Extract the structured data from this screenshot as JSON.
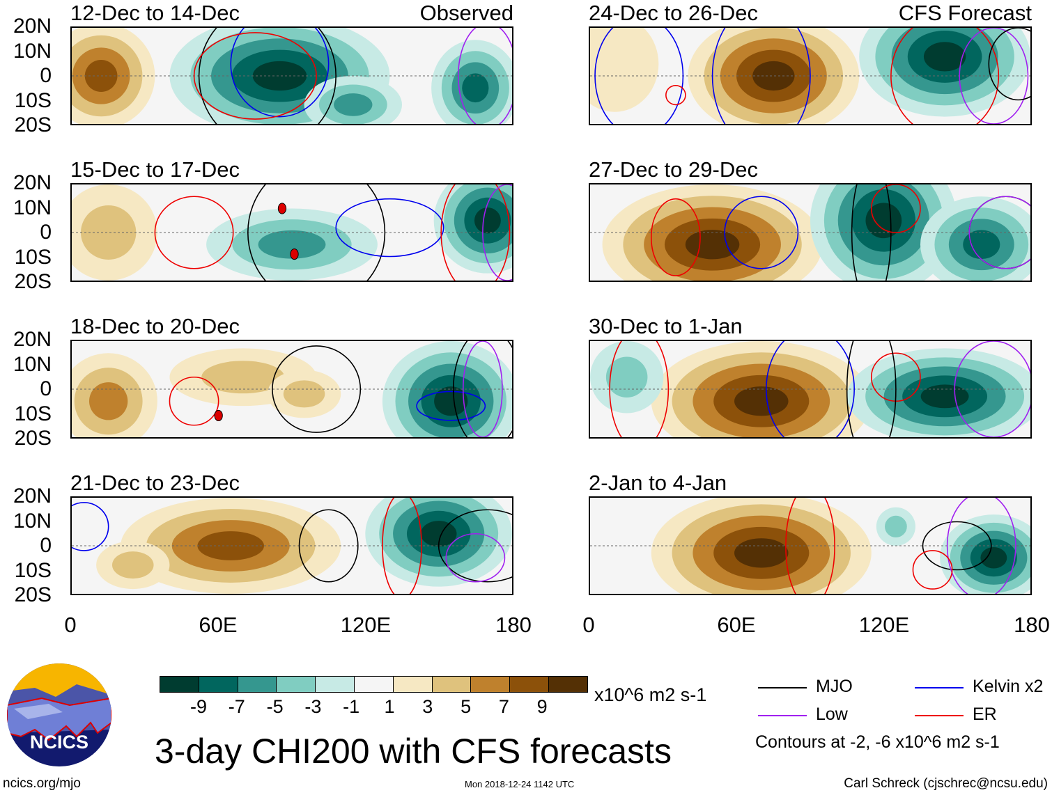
{
  "header": {
    "observed_label": "Observed",
    "forecast_label": "CFS Forecast"
  },
  "lat_labels": [
    "20N",
    "10N",
    "0",
    "10S",
    "20S"
  ],
  "lon_labels": [
    "0",
    "60E",
    "120E",
    "180"
  ],
  "colorbar": {
    "colors": [
      "#003c30",
      "#01665e",
      "#35978f",
      "#80cdc1",
      "#c7eae5",
      "#f5f5f5",
      "#f6e8c3",
      "#dfc27d",
      "#bf812d",
      "#8c510a",
      "#543005"
    ],
    "labels": [
      "-9",
      "-7",
      "-5",
      "-3",
      "-1",
      "1",
      "3",
      "5",
      "7",
      "9"
    ],
    "units": "x10^6 m2 s-1"
  },
  "title": "3-day CHI200 with CFS forecasts",
  "legend": {
    "items": [
      {
        "label": "MJO",
        "color": "#000000"
      },
      {
        "label": "Kelvin x2",
        "color": "#0000ee"
      },
      {
        "label": "Low",
        "color": "#a020f0"
      },
      {
        "label": "ER",
        "color": "#ee0000"
      }
    ],
    "note": "Contours at -2, -6 x10^6 m2 s-1"
  },
  "footer": {
    "url": "ncics.org/mjo",
    "timestamp": "Mon 2018-12-24 1142 UTC",
    "author": "Carl Schreck (cjschrec@ncsu.edu)"
  },
  "logo": {
    "text": "NCICS"
  },
  "panels": [
    {
      "title": "12-Dec to 14-Dec",
      "blobs": [
        [
          12,
          0,
          22,
          22,
          8
        ],
        [
          85,
          0,
          45,
          25,
          -10
        ],
        [
          165,
          -5,
          18,
          20,
          -6
        ],
        [
          115,
          -12,
          20,
          12,
          -5
        ]
      ],
      "contours": [
        [
          "MJO",
          80,
          0,
          28,
          30
        ],
        [
          "Kelvin",
          85,
          5,
          20,
          22
        ],
        [
          "ER",
          75,
          0,
          25,
          18
        ],
        [
          "Low",
          170,
          0,
          12,
          22
        ]
      ],
      "storms": []
    },
    {
      "title": "15-Dec to 17-Dec",
      "blobs": [
        [
          15,
          0,
          20,
          20,
          4
        ],
        [
          90,
          -5,
          35,
          15,
          -4
        ],
        [
          170,
          5,
          22,
          22,
          -10
        ]
      ],
      "contours": [
        [
          "ER",
          50,
          0,
          16,
          15
        ],
        [
          "MJO",
          100,
          0,
          28,
          30
        ],
        [
          "Kelvin",
          130,
          2,
          22,
          12
        ],
        [
          "ER",
          165,
          0,
          14,
          25
        ],
        [
          "Low",
          178,
          0,
          10,
          20
        ]
      ],
      "storms": [
        [
          86,
          10
        ],
        [
          91,
          -9
        ]
      ]
    },
    {
      "title": "18-Dec to 20-Dec",
      "blobs": [
        [
          15,
          -5,
          20,
          20,
          6
        ],
        [
          70,
          5,
          30,
          12,
          5
        ],
        [
          95,
          -2,
          15,
          10,
          4
        ],
        [
          155,
          -5,
          28,
          25,
          -8
        ]
      ],
      "contours": [
        [
          "ER",
          50,
          -5,
          10,
          10
        ],
        [
          "MJO",
          100,
          0,
          18,
          18
        ],
        [
          "Kelvin",
          155,
          -7,
          14,
          6
        ],
        [
          "MJO",
          170,
          0,
          14,
          25
        ],
        [
          "Low",
          168,
          0,
          8,
          20
        ]
      ],
      "storms": [
        [
          60,
          -11
        ]
      ]
    },
    {
      "title": "21-Dec to 23-Dec",
      "blobs": [
        [
          65,
          0,
          45,
          20,
          9
        ],
        [
          25,
          -8,
          15,
          10,
          4
        ],
        [
          150,
          5,
          30,
          22,
          -10
        ]
      ],
      "contours": [
        [
          "Kelvin",
          5,
          8,
          10,
          10
        ],
        [
          "MJO",
          105,
          0,
          12,
          15
        ],
        [
          "ER",
          135,
          0,
          8,
          22
        ],
        [
          "MJO",
          170,
          0,
          20,
          15
        ],
        [
          "Low",
          165,
          -5,
          12,
          10
        ]
      ],
      "storms": []
    },
    {
      "title": "24-Dec to 26-Dec",
      "blobs": [
        [
          10,
          5,
          18,
          20,
          3
        ],
        [
          75,
          0,
          35,
          25,
          10
        ],
        [
          145,
          8,
          35,
          25,
          -10
        ]
      ],
      "contours": [
        [
          "Kelvin",
          20,
          0,
          18,
          25
        ],
        [
          "ER",
          35,
          -8,
          4,
          4
        ],
        [
          "Kelvin",
          70,
          0,
          20,
          30
        ],
        [
          "ER",
          145,
          0,
          22,
          25
        ],
        [
          "Low",
          165,
          0,
          14,
          20
        ],
        [
          "MJO",
          175,
          5,
          12,
          15
        ]
      ],
      "storms": []
    },
    {
      "title": "27-Dec to 29-Dec",
      "blobs": [
        [
          50,
          -5,
          45,
          25,
          10
        ],
        [
          120,
          5,
          30,
          30,
          -10
        ],
        [
          160,
          -5,
          25,
          20,
          -6
        ]
      ],
      "contours": [
        [
          "ER",
          35,
          -2,
          10,
          16
        ],
        [
          "Kelvin",
          70,
          0,
          15,
          15
        ],
        [
          "MJO",
          115,
          0,
          8,
          30
        ],
        [
          "ER",
          125,
          10,
          10,
          10
        ],
        [
          "MJO",
          170,
          0,
          15,
          15
        ],
        [
          "Low",
          170,
          0,
          15,
          15
        ]
      ],
      "storms": []
    },
    {
      "title": "30-Dec to 1-Jan",
      "blobs": [
        [
          70,
          -5,
          45,
          25,
          10
        ],
        [
          145,
          -3,
          40,
          20,
          -10
        ],
        [
          15,
          5,
          15,
          15,
          -2
        ]
      ],
      "contours": [
        [
          "ER",
          20,
          0,
          12,
          25
        ],
        [
          "Kelvin",
          90,
          0,
          18,
          25
        ],
        [
          "ER",
          125,
          5,
          10,
          10
        ],
        [
          "MJO",
          115,
          0,
          10,
          30
        ],
        [
          "Low",
          165,
          0,
          16,
          20
        ]
      ],
      "storms": []
    },
    {
      "title": "2-Jan to 4-Jan",
      "blobs": [
        [
          70,
          -3,
          45,
          25,
          10
        ],
        [
          165,
          -5,
          22,
          18,
          -9
        ],
        [
          125,
          8,
          8,
          8,
          -3
        ]
      ],
      "contours": [
        [
          "ER",
          90,
          0,
          10,
          25
        ],
        [
          "MJO",
          150,
          0,
          14,
          10
        ],
        [
          "Low",
          160,
          0,
          14,
          22
        ],
        [
          "ER",
          140,
          -10,
          8,
          8
        ]
      ],
      "storms": []
    }
  ]
}
